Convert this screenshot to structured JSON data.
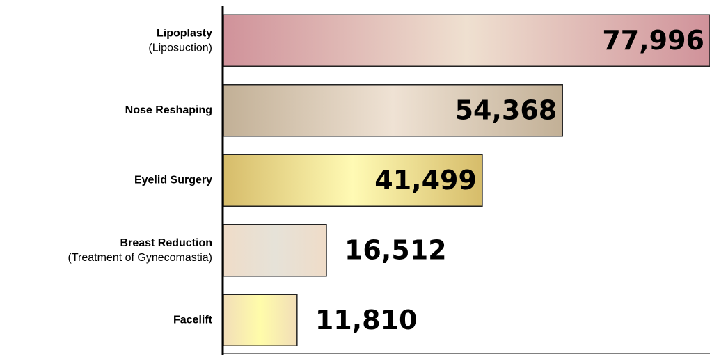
{
  "chart_data": {
    "type": "hbar",
    "categories": [
      "Lipoplasty",
      "Nose Reshaping",
      "Eyelid Surgery",
      "Breast Reduction",
      "Facelift"
    ],
    "category_notes": [
      "(Liposuction)",
      null,
      null,
      "(Treatment of Gynecomastia)",
      null
    ],
    "values": [
      77996,
      54368,
      41499,
      16512,
      11810
    ],
    "value_labels": [
      "77,996",
      "54,368",
      "41,499",
      "16,512",
      "11,810"
    ],
    "colors": [
      [
        "#d0929a",
        "#efe0d0"
      ],
      [
        "#c2b096",
        "#efe2d4"
      ],
      [
        "#d6bc6a",
        "#fffab4"
      ],
      [
        "#efdcc8",
        "#e6e2d8"
      ],
      [
        "#f2deb8",
        "#fffcaa"
      ]
    ],
    "xlim": [
      0,
      78000
    ]
  }
}
